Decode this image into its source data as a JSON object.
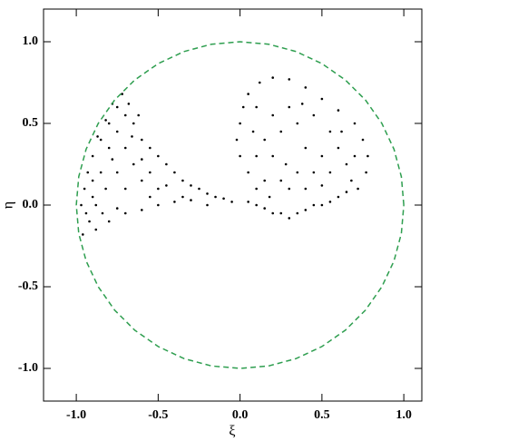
{
  "chart_data": {
    "type": "scatter",
    "xlabel": "ξ",
    "ylabel": "η",
    "xlim": [
      -1.2,
      1.11
    ],
    "ylim": [
      -1.2,
      1.2
    ],
    "xticks": [
      {
        "value": -1,
        "label": "-1.0"
      },
      {
        "value": -0.5,
        "label": "-0.5"
      },
      {
        "value": 0,
        "label": "0.0"
      },
      {
        "value": 0.5,
        "label": "0.5"
      },
      {
        "value": 1,
        "label": "1.0"
      }
    ],
    "yticks": [
      {
        "value": -1,
        "label": "-1.0"
      },
      {
        "value": -0.5,
        "label": "-0.5"
      },
      {
        "value": 0,
        "label": "0.0"
      },
      {
        "value": 0.5,
        "label": "0.5"
      },
      {
        "value": 1,
        "label": "1.0"
      }
    ],
    "series": [
      {
        "color": "#000000",
        "mode": "markers",
        "x": [
          -0.95,
          -0.9,
          -0.85,
          -0.8,
          -0.75,
          -0.72,
          -0.92,
          -0.96,
          -0.88,
          -0.85,
          -0.8,
          -0.75,
          -0.7,
          -0.65,
          -0.6,
          -0.55,
          -0.5,
          -0.45,
          -0.4,
          -0.35,
          -0.3,
          -0.25,
          -0.2,
          -0.15,
          -0.1,
          -0.05,
          -0.8,
          -0.7,
          -0.6,
          -0.5,
          -0.4,
          -0.3,
          -0.7,
          -0.6,
          -0.5,
          -0.65,
          -0.55,
          -0.75,
          -0.7,
          -0.6,
          -0.82,
          -0.78,
          -0.9,
          -0.93,
          -0.88,
          -0.84,
          -0.66,
          -0.62,
          -0.68,
          -0.78,
          -0.82,
          -0.87,
          -0.45,
          -0.35,
          -0.2,
          -0.55,
          -0.75,
          -0.9,
          -0.97,
          -0.94,
          0.05,
          0.1,
          0.15,
          0.2,
          0.25,
          0.3,
          0.35,
          0.4,
          0.45,
          0.5,
          0.55,
          0.6,
          0.1,
          0.05,
          0.0,
          -0.02,
          0.0,
          0.02,
          0.05,
          0.12,
          0.2,
          0.3,
          0.4,
          0.5,
          0.6,
          0.7,
          0.75,
          0.78,
          0.77,
          0.72,
          0.65,
          0.15,
          0.2,
          0.25,
          0.3,
          0.35,
          0.4,
          0.45,
          0.5,
          0.55,
          0.6,
          0.65,
          0.35,
          0.3,
          0.25,
          0.2,
          0.15,
          0.1,
          0.45,
          0.5,
          0.4,
          0.55,
          0.7,
          0.1,
          0.18,
          0.28,
          0.38,
          0.62,
          0.68,
          0.08
        ],
        "values": [
          0.1,
          0.3,
          0.4,
          0.5,
          0.6,
          0.68,
          -0.1,
          -0.18,
          0.0,
          0.2,
          0.35,
          0.45,
          0.55,
          0.5,
          0.4,
          0.35,
          0.3,
          0.25,
          0.2,
          0.15,
          0.12,
          0.1,
          0.07,
          0.05,
          0.04,
          0.02,
          -0.1,
          -0.05,
          -0.03,
          0.0,
          0.02,
          0.03,
          0.1,
          0.15,
          0.1,
          0.25,
          0.2,
          0.2,
          0.35,
          0.28,
          0.1,
          0.28,
          0.15,
          0.2,
          -0.15,
          -0.05,
          0.42,
          0.55,
          0.62,
          0.62,
          0.52,
          0.42,
          0.12,
          0.05,
          0.0,
          0.05,
          -0.02,
          0.05,
          0.0,
          -0.05,
          0.02,
          0.0,
          -0.02,
          -0.05,
          -0.05,
          -0.08,
          -0.05,
          -0.03,
          0.0,
          0.0,
          0.02,
          0.05,
          0.1,
          0.2,
          0.3,
          0.4,
          0.5,
          0.6,
          0.68,
          0.75,
          0.78,
          0.77,
          0.72,
          0.65,
          0.58,
          0.5,
          0.4,
          0.3,
          0.2,
          0.1,
          0.08,
          0.15,
          0.3,
          0.45,
          0.6,
          0.5,
          0.35,
          0.2,
          0.3,
          0.45,
          0.35,
          0.25,
          0.2,
          0.1,
          0.15,
          0.55,
          0.4,
          0.6,
          0.55,
          0.12,
          0.1,
          0.2,
          0.3,
          0.3,
          0.05,
          0.25,
          0.62,
          0.45,
          0.15,
          0.45
        ]
      },
      {
        "color": "#2e9e4f",
        "mode": "dashed-line",
        "x": [
          1,
          0.985,
          0.94,
          0.866,
          0.766,
          0.643,
          0.5,
          0.342,
          0.174,
          0,
          -0.174,
          -0.342,
          -0.5,
          -0.643,
          -0.766,
          -0.866,
          -0.94,
          -0.985,
          -1,
          -0.985,
          -0.94,
          -0.866,
          -0.766,
          -0.643,
          -0.5,
          -0.342,
          -0.174,
          0,
          0.174,
          0.342,
          0.5,
          0.643,
          0.766,
          0.866,
          0.94,
          0.985,
          1
        ],
        "values": [
          0,
          0.174,
          0.342,
          0.5,
          0.643,
          0.766,
          0.866,
          0.94,
          0.985,
          1,
          0.985,
          0.94,
          0.866,
          0.766,
          0.643,
          0.5,
          0.342,
          0.174,
          0,
          -0.174,
          -0.342,
          -0.5,
          -0.643,
          -0.766,
          -0.866,
          -0.94,
          -0.985,
          -1,
          -0.985,
          -0.94,
          -0.866,
          -0.766,
          -0.643,
          -0.5,
          -0.342,
          -0.174,
          0
        ]
      }
    ]
  }
}
